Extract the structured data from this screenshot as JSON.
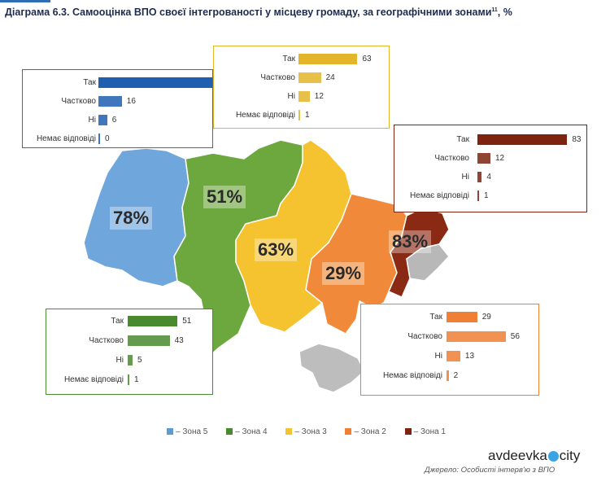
{
  "title": "Діаграма 6.3. Самооцінка ВПО своєї інтегрованості у місцеву громаду, за географічними зонами",
  "title_sup": "11",
  "title_suffix": ", %",
  "chart_data": {
    "type": "bar",
    "categories": [
      "Так",
      "Частково",
      "Ні",
      "Немає відповіді"
    ],
    "series": [
      {
        "name": "Зона 5",
        "color": "#1f5fb0",
        "total": "78%",
        "values": [
          78,
          16,
          6,
          0
        ]
      },
      {
        "name": "Зона 4",
        "color": "#4a8a2f",
        "total": "51%",
        "values": [
          51,
          43,
          5,
          1
        ]
      },
      {
        "name": "Зона 3",
        "color": "#e3b52a",
        "total": "63%",
        "values": [
          63,
          24,
          12,
          1
        ]
      },
      {
        "name": "Зона 2",
        "color": "#ee7f34",
        "total": "29%",
        "values": [
          29,
          56,
          13,
          2
        ]
      },
      {
        "name": "Зона 1",
        "color": "#7d2310",
        "total": "83%",
        "values": [
          83,
          12,
          4,
          1
        ]
      }
    ]
  },
  "legend": [
    "– Зона 5",
    "– Зона 4",
    "– Зона 3",
    "– Зона 2",
    "– Зона 1"
  ],
  "source": "Джерело: Особисті інтерв'ю з ВПО",
  "watermark": {
    "left": "avdeevka",
    "right": "city"
  }
}
